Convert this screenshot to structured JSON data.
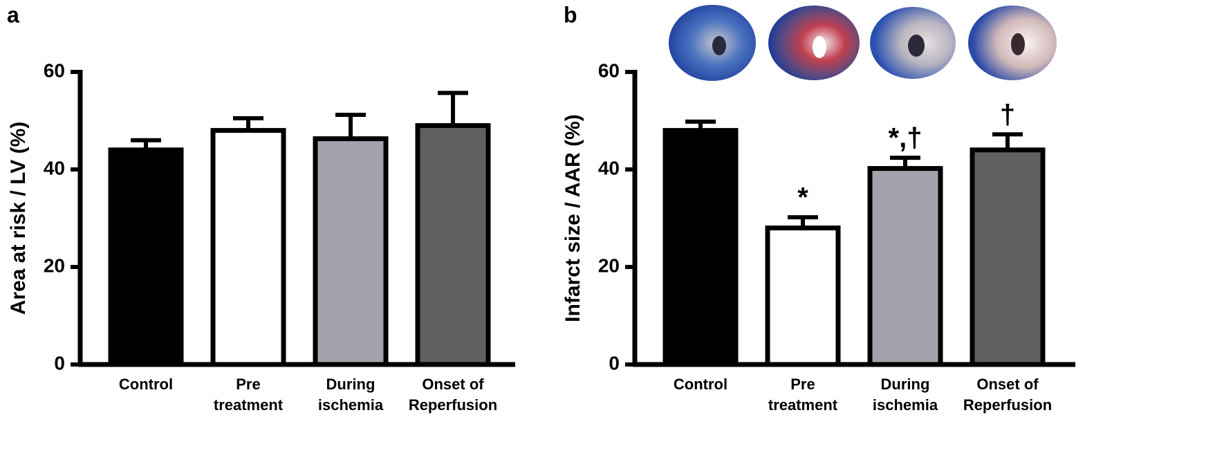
{
  "chart_data": [
    {
      "type": "bar",
      "panel": "a",
      "ylabel": "Area at risk / LV (%)",
      "categories": [
        [
          "Control"
        ],
        [
          "Pre",
          "treatment"
        ],
        [
          "During",
          "ischemia"
        ],
        [
          "Onset of",
          "Reperfusion"
        ]
      ],
      "values": [
        44,
        48,
        46.3,
        49
      ],
      "errors": [
        2,
        2.5,
        4.9,
        6.7
      ],
      "colors": [
        "#000000",
        "#ffffff",
        "#a2a2aa",
        "#606060"
      ],
      "ylim": [
        0,
        60
      ],
      "yticks": [
        0,
        20,
        40,
        60
      ]
    },
    {
      "type": "bar",
      "panel": "b",
      "ylabel": "Infarct size / AAR (%)",
      "categories": [
        [
          "Control"
        ],
        [
          "Pre",
          "treatment"
        ],
        [
          "During",
          "ischemia"
        ],
        [
          "Onset of",
          "Reperfusion"
        ]
      ],
      "values": [
        48,
        28,
        40.2,
        44
      ],
      "errors": [
        1.8,
        2.2,
        2.2,
        3.2
      ],
      "annotations": [
        null,
        "*",
        "*,†",
        "†"
      ],
      "colors": [
        "#000000",
        "#ffffff",
        "#a2a2aa",
        "#606060"
      ],
      "ylim": [
        0,
        60
      ],
      "yticks": [
        0,
        20,
        40,
        60
      ]
    }
  ]
}
